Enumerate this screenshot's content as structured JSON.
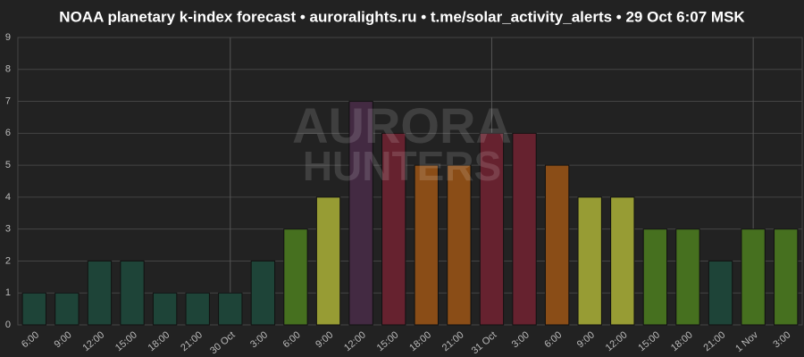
{
  "chart_data": {
    "type": "bar",
    "title": "NOAA planetary k-index forecast • auroralights.ru • t.me/solar_activity_alerts • 29 Oct 6:07 MSK",
    "watermark": [
      "AURORA",
      "HUNTERS"
    ],
    "categories": [
      "6:00",
      "9:00",
      "12:00",
      "15:00",
      "18:00",
      "21:00",
      "30 Oct",
      "3:00",
      "6:00",
      "9:00",
      "12:00",
      "15:00",
      "18:00",
      "21:00",
      "31 Oct",
      "3:00",
      "6:00",
      "9:00",
      "12:00",
      "15:00",
      "18:00",
      "21:00",
      "1 Nov",
      "3:00"
    ],
    "values": [
      1,
      1,
      2,
      2,
      1,
      1,
      1,
      2,
      3,
      4,
      7,
      6,
      5,
      5,
      6,
      6,
      5,
      4,
      4,
      3,
      3,
      2,
      3,
      3
    ],
    "colors": [
      "#1e4438",
      "#1e4438",
      "#1e4438",
      "#1e4438",
      "#1e4438",
      "#1e4438",
      "#1e4438",
      "#1e4438",
      "#46701f",
      "#979c34",
      "#432a42",
      "#66222f",
      "#8a4d17",
      "#8a4d17",
      "#66222f",
      "#66222f",
      "#8a4d17",
      "#979c34",
      "#979c34",
      "#46701f",
      "#46701f",
      "#1e4438",
      "#46701f",
      "#46701f"
    ],
    "ylim": [
      0,
      9
    ],
    "yticks": [
      0,
      1,
      2,
      3,
      4,
      5,
      6,
      7,
      8,
      9
    ],
    "grid": true
  }
}
